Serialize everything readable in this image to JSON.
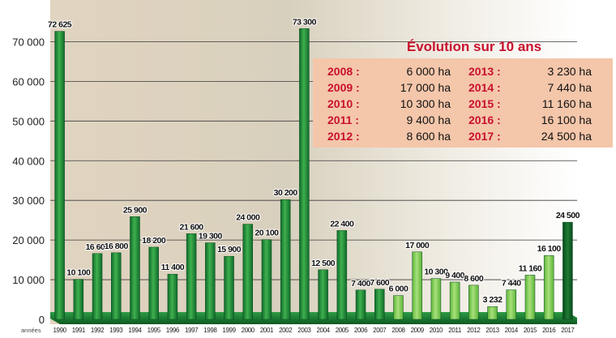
{
  "chart_data": {
    "type": "bar",
    "categories": [
      "1990",
      "1991",
      "1992",
      "1993",
      "1994",
      "1995",
      "1996",
      "1997",
      "1998",
      "1999",
      "2000",
      "2001",
      "2002",
      "2003",
      "2004",
      "2005",
      "2006",
      "2007",
      "2008",
      "2009",
      "2010",
      "2011",
      "2012",
      "2013",
      "2014",
      "2015",
      "2016",
      "2017"
    ],
    "values": [
      72625,
      10100,
      16600,
      16800,
      25900,
      18200,
      11400,
      21600,
      19300,
      15900,
      24000,
      20100,
      30200,
      73300,
      12500,
      22400,
      7400,
      7600,
      6000,
      17000,
      10300,
      9400,
      8600,
      3232,
      7440,
      11160,
      16100,
      24500
    ],
    "value_labels": [
      "72 625",
      "10 100",
      "16 600",
      "16 800",
      "25 900",
      "18 200",
      "11 400",
      "21 600",
      "19 300",
      "15 900",
      "24 000",
      "20 100",
      "30 200",
      "73 300",
      "12 500",
      "22 400",
      "7 400",
      "7 600",
      "6 000",
      "17 000",
      "10 300",
      "9 400",
      "8 600",
      "3 232",
      "7 440",
      "11 160",
      "16 100",
      "24 500"
    ],
    "tick_labels": [
      "1990",
      "1991",
      "1992",
      "1993",
      "1994",
      "1995",
      "1996",
      "1997",
      "1998",
      "1999",
      "2000",
      "2001",
      "2002",
      "2003",
      "2004",
      "2005",
      "2006",
      "2007",
      "2008",
      "2009",
      "2010",
      "2011",
      "2012",
      "2013",
      "2014",
      "2015",
      "2016",
      "2017"
    ],
    "highlight_years": [
      "2008",
      "2009",
      "2010",
      "2011",
      "2012",
      "2013",
      "2014",
      "2015",
      "2016"
    ],
    "x_axis_prefix": "années",
    "ylim": [
      0,
      75000
    ],
    "yticks": [
      0,
      10000,
      20000,
      30000,
      40000,
      50000,
      60000,
      70000
    ],
    "ytick_labels": [
      "0",
      "10 000",
      "20 000",
      "30 000",
      "40 000",
      "50 000",
      "60 000",
      "70 000"
    ],
    "grid": true,
    "colors": {
      "bar": "#1f8a3a",
      "bar_light": "#8bd45a",
      "bar_last": "#0f5a24",
      "title_red": "#c8102e",
      "box_bg": "#f4c6aa"
    }
  },
  "summary": {
    "title": "Évolution sur 10 ans",
    "left": [
      {
        "year": "2008 :",
        "value": "6 000 ha"
      },
      {
        "year": "2009 :",
        "value": "17 000 ha"
      },
      {
        "year": "2010 :",
        "value": "10 300 ha"
      },
      {
        "year": "2011 :",
        "value": "9 400 ha"
      },
      {
        "year": "2012 :",
        "value": "8 600 ha"
      }
    ],
    "right": [
      {
        "year": "2013 :",
        "value": "3 230 ha"
      },
      {
        "year": "2014 :",
        "value": "7 440 ha"
      },
      {
        "year": "2015 :",
        "value": "11 160 ha"
      },
      {
        "year": "2016 :",
        "value": "16 100 ha"
      },
      {
        "year": "2017 :",
        "value": "24 500 ha"
      }
    ]
  }
}
